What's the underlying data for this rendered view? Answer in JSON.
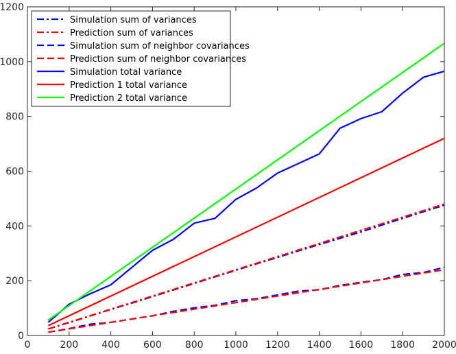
{
  "chart_data": {
    "type": "line",
    "title": "",
    "xlabel": "",
    "ylabel": "",
    "xlim": [
      0,
      2000
    ],
    "ylim": [
      0,
      1200
    ],
    "xticks": [
      0,
      200,
      400,
      600,
      800,
      1000,
      1200,
      1400,
      1600,
      1800,
      2000
    ],
    "yticks": [
      0,
      200,
      400,
      600,
      800,
      1000,
      1200
    ],
    "grid": false,
    "legend_position": "top-left",
    "series": [
      {
        "name": "Simulation sum of variances",
        "color": "#0000ff",
        "style": "dashdot",
        "x": [
          100,
          200,
          300,
          400,
          500,
          600,
          700,
          800,
          900,
          1000,
          1100,
          1200,
          1300,
          1400,
          1500,
          1600,
          1700,
          1800,
          1900,
          2000
        ],
        "y": [
          24,
          47,
          71,
          95,
          118,
          142,
          166,
          190,
          214,
          238,
          262,
          285,
          309,
          332,
          355,
          378,
          403,
          428,
          452,
          476
        ]
      },
      {
        "name": "Prediction sum of variances",
        "color": "#ff0000",
        "style": "dashdot",
        "x": [
          100,
          2000
        ],
        "y": [
          24,
          480
        ]
      },
      {
        "name": "Simulation sum of neighbor covariances",
        "color": "#0000ff",
        "style": "dashed",
        "x": [
          100,
          200,
          300,
          400,
          500,
          600,
          700,
          800,
          900,
          1000,
          1100,
          1200,
          1300,
          1400,
          1500,
          1600,
          1700,
          1800,
          1900,
          2000
        ],
        "y": [
          12,
          25,
          41,
          48,
          60,
          72,
          88,
          101,
          110,
          127,
          134,
          148,
          162,
          167,
          183,
          194,
          204,
          223,
          230,
          249
        ]
      },
      {
        "name": "Prediction sum of neighbor covariances",
        "color": "#ff0000",
        "style": "dashed",
        "x": [
          100,
          2000
        ],
        "y": [
          12,
          240
        ]
      },
      {
        "name": "Simulation total variance",
        "color": "#0000ff",
        "style": "solid",
        "x": [
          100,
          200,
          300,
          400,
          500,
          600,
          700,
          800,
          900,
          1000,
          1100,
          1200,
          1300,
          1400,
          1500,
          1600,
          1700,
          1800,
          1900,
          2000
        ],
        "y": [
          48,
          114,
          152,
          185,
          248,
          311,
          351,
          410,
          428,
          497,
          539,
          593,
          628,
          663,
          757,
          792,
          817,
          885,
          943,
          965
        ]
      },
      {
        "name": "Prediction 1 total variance",
        "color": "#ff0000",
        "style": "solid",
        "x": [
          100,
          2000
        ],
        "y": [
          36,
          720
        ]
      },
      {
        "name": "Prediction 2 total variance",
        "color": "#00ff00",
        "style": "solid",
        "x": [
          100,
          2000
        ],
        "y": [
          56,
          1067
        ]
      }
    ]
  }
}
